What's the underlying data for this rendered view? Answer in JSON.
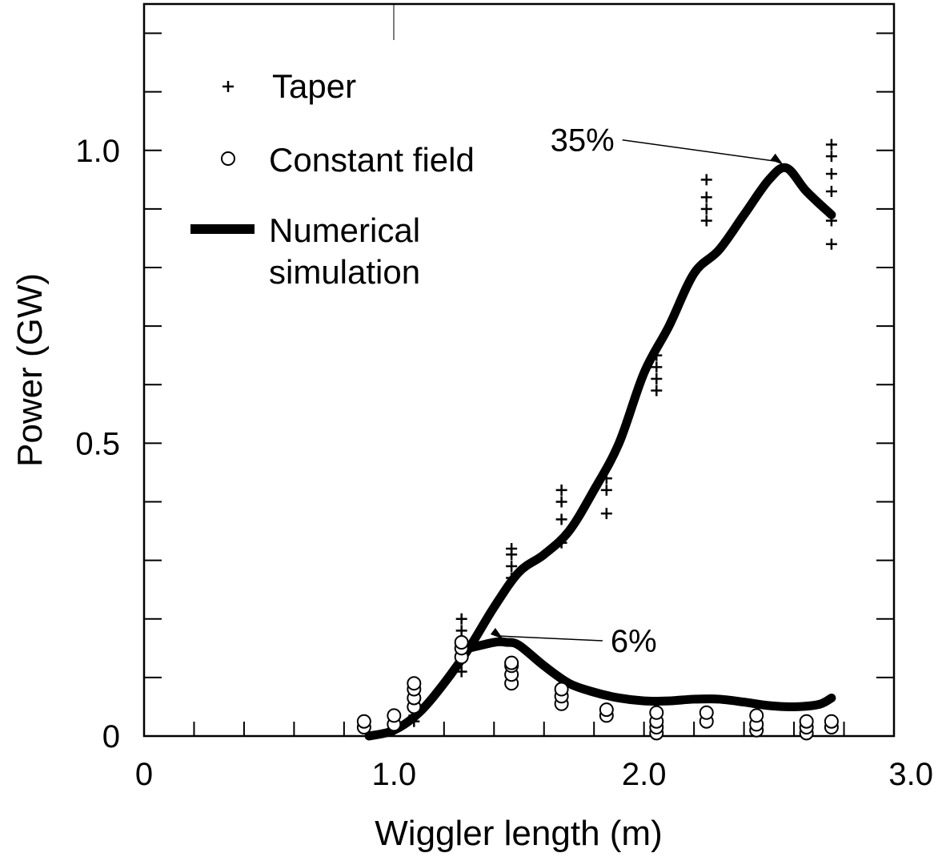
{
  "chart_data": {
    "type": "scatter",
    "xlabel": "Wiggler length (m)",
    "ylabel": "Power (GW)",
    "xlim": [
      0,
      3.0
    ],
    "ylim": [
      0,
      1.25
    ],
    "x_ticks": [
      {
        "value": 0,
        "label": "0"
      },
      {
        "value": 1.0,
        "label": "1.0"
      },
      {
        "value": 2.0,
        "label": "2.0"
      },
      {
        "value": 3.0,
        "label": "3.0"
      }
    ],
    "y_ticks": [
      {
        "value": 0,
        "label": "0"
      },
      {
        "value": 0.5,
        "label": "0.5"
      },
      {
        "value": 1.0,
        "label": "1.0"
      }
    ],
    "y_minor_step": 0.1,
    "x_minor_step": 0.2,
    "grid": false,
    "legend": {
      "placement": "top-left",
      "entries": [
        {
          "marker": "+",
          "label": "Taper"
        },
        {
          "marker": "o",
          "label": "Constant field"
        },
        {
          "marker": "line",
          "label": "Numerical simulation"
        }
      ]
    },
    "series": [
      {
        "name": "Taper",
        "marker": "+",
        "points": [
          [
            0.88,
            0.015
          ],
          [
            0.88,
            0.02
          ],
          [
            1.08,
            0.025
          ],
          [
            1.08,
            0.035
          ],
          [
            1.27,
            0.11
          ],
          [
            1.27,
            0.15
          ],
          [
            1.27,
            0.18
          ],
          [
            1.27,
            0.2
          ],
          [
            1.47,
            0.27
          ],
          [
            1.47,
            0.29
          ],
          [
            1.47,
            0.31
          ],
          [
            1.47,
            0.32
          ],
          [
            1.67,
            0.33
          ],
          [
            1.67,
            0.37
          ],
          [
            1.67,
            0.4
          ],
          [
            1.67,
            0.42
          ],
          [
            1.85,
            0.38
          ],
          [
            1.85,
            0.42
          ],
          [
            1.85,
            0.44
          ],
          [
            2.05,
            0.59
          ],
          [
            2.05,
            0.61
          ],
          [
            2.05,
            0.63
          ],
          [
            2.05,
            0.65
          ],
          [
            2.25,
            0.88
          ],
          [
            2.25,
            0.9
          ],
          [
            2.25,
            0.92
          ],
          [
            2.25,
            0.95
          ],
          [
            2.75,
            0.84
          ],
          [
            2.75,
            0.88
          ],
          [
            2.75,
            0.93
          ],
          [
            2.75,
            0.96
          ],
          [
            2.75,
            0.99
          ],
          [
            2.75,
            1.01
          ]
        ]
      },
      {
        "name": "Constant field",
        "marker": "o",
        "points": [
          [
            0.88,
            0.015
          ],
          [
            0.88,
            0.025
          ],
          [
            1.0,
            0.02
          ],
          [
            1.0,
            0.035
          ],
          [
            1.08,
            0.05
          ],
          [
            1.08,
            0.065
          ],
          [
            1.08,
            0.08
          ],
          [
            1.08,
            0.09
          ],
          [
            1.27,
            0.135
          ],
          [
            1.27,
            0.15
          ],
          [
            1.27,
            0.16
          ],
          [
            1.47,
            0.09
          ],
          [
            1.47,
            0.105
          ],
          [
            1.47,
            0.12
          ],
          [
            1.47,
            0.125
          ],
          [
            1.67,
            0.055
          ],
          [
            1.67,
            0.068
          ],
          [
            1.67,
            0.08
          ],
          [
            1.85,
            0.035
          ],
          [
            1.85,
            0.045
          ],
          [
            2.05,
            0.005
          ],
          [
            2.05,
            0.015
          ],
          [
            2.05,
            0.025
          ],
          [
            2.05,
            0.04
          ],
          [
            2.25,
            0.025
          ],
          [
            2.25,
            0.04
          ],
          [
            2.45,
            0.01
          ],
          [
            2.45,
            0.02
          ],
          [
            2.45,
            0.035
          ],
          [
            2.65,
            0.005
          ],
          [
            2.65,
            0.015
          ],
          [
            2.65,
            0.025
          ],
          [
            2.75,
            0.015
          ],
          [
            2.75,
            0.025
          ]
        ]
      },
      {
        "name": "Numerical simulation",
        "type": "line",
        "x": [
          0.9,
          1.0,
          1.1,
          1.2,
          1.3,
          1.4,
          1.5,
          1.6,
          1.7,
          1.8,
          1.9,
          2.0,
          2.1,
          2.2,
          2.3,
          2.4,
          2.5,
          2.57,
          2.65,
          2.75
        ],
        "y": [
          0.0,
          0.01,
          0.04,
          0.09,
          0.15,
          0.22,
          0.28,
          0.31,
          0.35,
          0.42,
          0.5,
          0.62,
          0.7,
          0.79,
          0.83,
          0.89,
          0.95,
          0.97,
          0.93,
          0.89
        ]
      },
      {
        "name": "Numerical simulation (constant field)",
        "type": "line",
        "x": [
          1.3,
          1.4,
          1.45,
          1.5,
          1.6,
          1.7,
          1.8,
          1.9,
          2.0,
          2.1,
          2.2,
          2.3,
          2.4,
          2.5,
          2.6,
          2.7,
          2.75
        ],
        "y": [
          0.15,
          0.16,
          0.16,
          0.155,
          0.12,
          0.09,
          0.075,
          0.065,
          0.06,
          0.06,
          0.063,
          0.063,
          0.058,
          0.052,
          0.05,
          0.054,
          0.065
        ]
      }
    ],
    "annotations": [
      {
        "text": "35%",
        "x": 2.57,
        "y": 0.97
      },
      {
        "text": "6%",
        "x": 1.45,
        "y": 0.16
      }
    ]
  }
}
